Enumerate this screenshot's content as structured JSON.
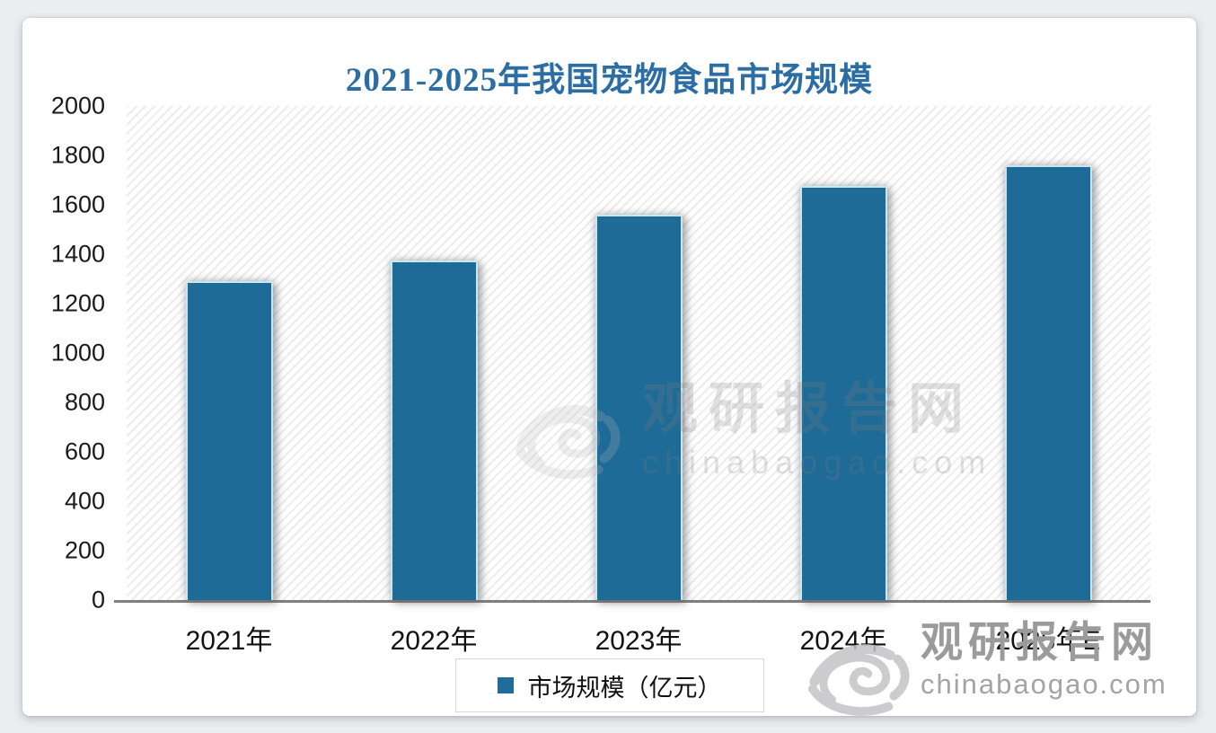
{
  "chart_data": {
    "type": "bar",
    "title": "2021-2025年我国宠物食品市场规模",
    "categories": [
      "2021年",
      "2022年",
      "2023年",
      "2024年",
      "2025年E"
    ],
    "series": [
      {
        "name": "市场规模（亿元）",
        "values": [
          1290,
          1375,
          1560,
          1675,
          1760
        ]
      }
    ],
    "xlabel": "",
    "ylabel": "",
    "ylim": [
      0,
      2000
    ],
    "yticks": [
      0,
      200,
      400,
      600,
      800,
      1000,
      1200,
      1400,
      1600,
      1800,
      2000
    ],
    "grid": false,
    "legend_position": "bottom",
    "bar_color": "#1d6b96",
    "bar_border_color": "#c9e6f3"
  },
  "legend": {
    "label": "市场规模（亿元）",
    "marker_color": "#1f6b99"
  },
  "watermarks": {
    "center": {
      "brand": "观研报告网",
      "domain": "chinabaogao.com"
    },
    "corner": {
      "brand": "观研报告网",
      "domain": "chinabaogao.com"
    }
  },
  "colors": {
    "title_text": "#2c6da3",
    "axis_line": "#7f7f7f",
    "tick_text": "#1a1a1a",
    "watermark_gray": "#9b9b9b",
    "card_background": "#ffffff",
    "page_background": "#ecedf0"
  }
}
